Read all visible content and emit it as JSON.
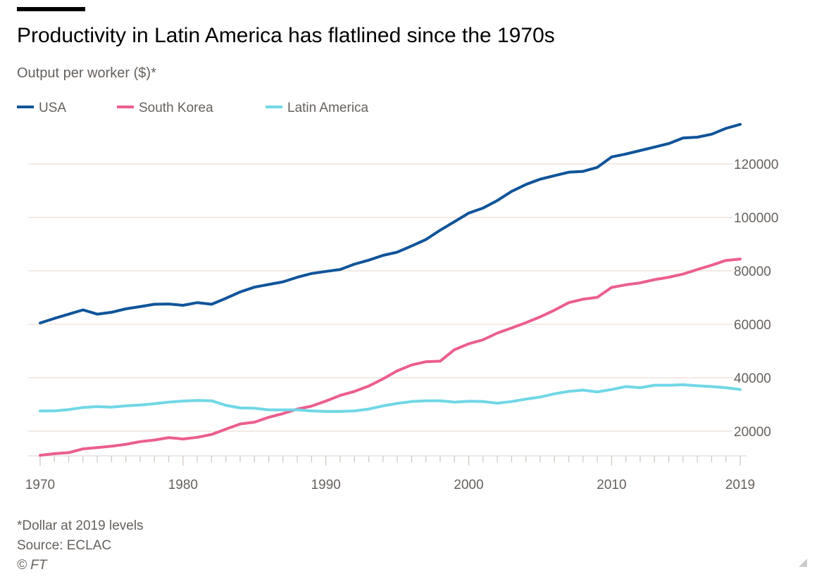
{
  "chart_data": {
    "type": "line",
    "title": "Productivity in Latin America has flatlined since the 1970s",
    "subtitle": "Output per worker ($)*",
    "xlabel": "",
    "ylabel": "Output per worker ($)",
    "xlim": [
      1970,
      2019
    ],
    "ylim": [
      10800,
      139000
    ],
    "grid": true,
    "legend_placement": "top-left",
    "x_ticks": [
      "1970",
      "1980",
      "1990",
      "2000",
      "2010",
      "2019"
    ],
    "y_ticks": [
      "20000",
      "40000",
      "60000",
      "80000",
      "100000",
      "120000"
    ],
    "x": [
      1970,
      1971,
      1972,
      1973,
      1974,
      1975,
      1976,
      1977,
      1978,
      1979,
      1980,
      1981,
      1982,
      1983,
      1984,
      1985,
      1986,
      1987,
      1988,
      1989,
      1990,
      1991,
      1992,
      1993,
      1994,
      1995,
      1996,
      1997,
      1998,
      1999,
      2000,
      2001,
      2002,
      2003,
      2004,
      2005,
      2006,
      2007,
      2008,
      2009,
      2010,
      2011,
      2012,
      2013,
      2014,
      2015,
      2016,
      2017,
      2018,
      2019
    ],
    "series": [
      {
        "name": "USA",
        "color": "#0f5499",
        "values": [
          60500,
          62200,
          63800,
          65400,
          63800,
          64500,
          65800,
          66600,
          67500,
          67600,
          67100,
          68100,
          67500,
          69700,
          72100,
          73900,
          74900,
          75900,
          77600,
          79000,
          79800,
          80500,
          82500,
          84000,
          85800,
          87000,
          89300,
          91700,
          95200,
          98400,
          101600,
          103500,
          106300,
          109700,
          112300,
          114300,
          115600,
          116900,
          117200,
          118700,
          122600,
          123700,
          125000,
          126300,
          127600,
          129700,
          130000,
          131100,
          133300,
          134800
        ]
      },
      {
        "name": "South Korea",
        "color": "#eb5e8d",
        "values": [
          11000,
          11600,
          12000,
          13400,
          13900,
          14400,
          15100,
          16100,
          16700,
          17600,
          17100,
          17700,
          18800,
          20800,
          22700,
          23400,
          25200,
          26600,
          28300,
          29400,
          31300,
          33400,
          34900,
          36900,
          39600,
          42600,
          44800,
          46000,
          46200,
          50500,
          52700,
          54200,
          56700,
          58600,
          60600,
          62800,
          65300,
          68100,
          69400,
          70100,
          73800,
          74800,
          75500,
          76700,
          77600,
          78800,
          80500,
          82100,
          83900,
          84400
        ]
      },
      {
        "name": "Latin America",
        "color": "#70d7e6",
        "values": [
          27600,
          27600,
          28100,
          28900,
          29200,
          29000,
          29500,
          29800,
          30300,
          30900,
          31300,
          31500,
          31400,
          29700,
          28700,
          28600,
          28000,
          28000,
          28000,
          27600,
          27400,
          27400,
          27600,
          28300,
          29500,
          30400,
          31100,
          31400,
          31400,
          30900,
          31200,
          31100,
          30500,
          31100,
          32000,
          32800,
          34000,
          34900,
          35400,
          34700,
          35600,
          36700,
          36300,
          37200,
          37200,
          37400,
          37000,
          36700,
          36300,
          35600
        ]
      }
    ],
    "footnote": "*Dollar at 2019 levels",
    "source": "Source: ECLAC",
    "credit": "© FT"
  }
}
